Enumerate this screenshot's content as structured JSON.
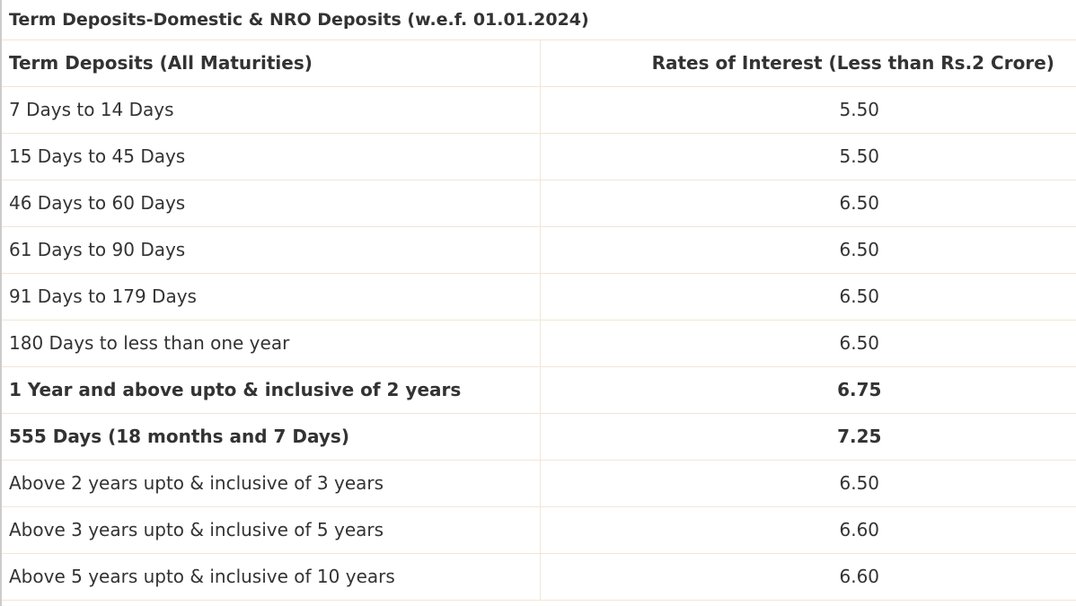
{
  "table": {
    "title": "Term Deposits-Domestic & NRO Deposits (w.e.f. 01.01.2024)",
    "header": [
      "Term Deposits (All Maturities)",
      "Rates of Interest (Less than Rs.2 Crore)"
    ],
    "rows": [
      [
        "7 Days to 14 Days",
        "5.50"
      ],
      [
        "15 Days to 45 Days",
        "5.50"
      ],
      [
        "46 Days to 60 Days",
        "6.50"
      ],
      [
        "61 Days to 90 Days",
        "6.50"
      ],
      [
        "91 Days to 179 Days",
        "6.50"
      ],
      [
        "180 Days to less than one year",
        "6.50"
      ],
      [
        "1 Year and above upto & inclusive of 2 years",
        "6.75"
      ],
      [
        "555 Days (18 months and 7 Days)",
        "7.25"
      ],
      [
        "Above 2 years upto & inclusive of 3 years",
        "6.50"
      ],
      [
        "Above 3 years upto & inclusive of 5 years",
        "6.60"
      ],
      [
        "Above 5 years upto & inclusive of 10 years",
        "6.60"
      ]
    ]
  }
}
